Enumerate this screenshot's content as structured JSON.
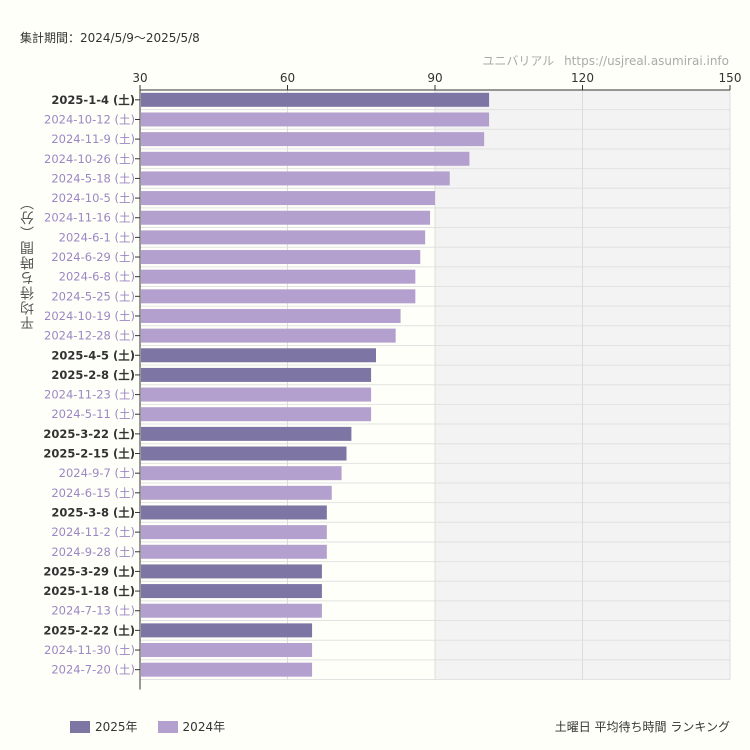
{
  "header": {
    "period": "集計期間：2024/5/9〜2025/5/8",
    "site_name": "ユニバリアル",
    "site_url": "https://usjreal.asumirai.info"
  },
  "colors": {
    "y2025": "#7d76a4",
    "y2024": "#b3a0cf",
    "label2025": "#333333",
    "label2024": "#9b87c4",
    "shade": "#f3f3f3"
  },
  "chart_data": {
    "type": "bar",
    "orientation": "horizontal",
    "title": "土曜日 平均待ち時間 ランキング",
    "ylabel": "平均待ち時間（分）",
    "xlim": [
      30,
      150
    ],
    "xticks": [
      30,
      60,
      90,
      120,
      150
    ],
    "shaded_range": [
      90,
      150
    ],
    "grid": true,
    "legend_position": "bottom-left",
    "legend": [
      {
        "name": "2025年",
        "year": "2025"
      },
      {
        "name": "2024年",
        "year": "2024"
      }
    ],
    "bars": [
      {
        "label": "2025-1-4 (土)",
        "value": 101,
        "year": "2025"
      },
      {
        "label": "2024-10-12 (土)",
        "value": 101,
        "year": "2024"
      },
      {
        "label": "2024-11-9 (土)",
        "value": 100,
        "year": "2024"
      },
      {
        "label": "2024-10-26 (土)",
        "value": 97,
        "year": "2024"
      },
      {
        "label": "2024-5-18 (土)",
        "value": 93,
        "year": "2024"
      },
      {
        "label": "2024-10-5 (土)",
        "value": 90,
        "year": "2024"
      },
      {
        "label": "2024-11-16 (土)",
        "value": 89,
        "year": "2024"
      },
      {
        "label": "2024-6-1 (土)",
        "value": 88,
        "year": "2024"
      },
      {
        "label": "2024-6-29 (土)",
        "value": 87,
        "year": "2024"
      },
      {
        "label": "2024-6-8 (土)",
        "value": 86,
        "year": "2024"
      },
      {
        "label": "2024-5-25 (土)",
        "value": 86,
        "year": "2024"
      },
      {
        "label": "2024-10-19 (土)",
        "value": 83,
        "year": "2024"
      },
      {
        "label": "2024-12-28 (土)",
        "value": 82,
        "year": "2024"
      },
      {
        "label": "2025-4-5 (土)",
        "value": 78,
        "year": "2025"
      },
      {
        "label": "2025-2-8 (土)",
        "value": 77,
        "year": "2025"
      },
      {
        "label": "2024-11-23 (土)",
        "value": 77,
        "year": "2024"
      },
      {
        "label": "2024-5-11 (土)",
        "value": 77,
        "year": "2024"
      },
      {
        "label": "2025-3-22 (土)",
        "value": 73,
        "year": "2025"
      },
      {
        "label": "2025-2-15 (土)",
        "value": 72,
        "year": "2025"
      },
      {
        "label": "2024-9-7 (土)",
        "value": 71,
        "year": "2024"
      },
      {
        "label": "2024-6-15 (土)",
        "value": 69,
        "year": "2024"
      },
      {
        "label": "2025-3-8 (土)",
        "value": 68,
        "year": "2025"
      },
      {
        "label": "2024-11-2 (土)",
        "value": 68,
        "year": "2024"
      },
      {
        "label": "2024-9-28 (土)",
        "value": 68,
        "year": "2024"
      },
      {
        "label": "2025-3-29 (土)",
        "value": 67,
        "year": "2025"
      },
      {
        "label": "2025-1-18 (土)",
        "value": 67,
        "year": "2025"
      },
      {
        "label": "2024-7-13 (土)",
        "value": 67,
        "year": "2024"
      },
      {
        "label": "2025-2-22 (土)",
        "value": 65,
        "year": "2025"
      },
      {
        "label": "2024-11-30 (土)",
        "value": 65,
        "year": "2024"
      },
      {
        "label": "2024-7-20 (土)",
        "value": 65,
        "year": "2024"
      }
    ]
  }
}
